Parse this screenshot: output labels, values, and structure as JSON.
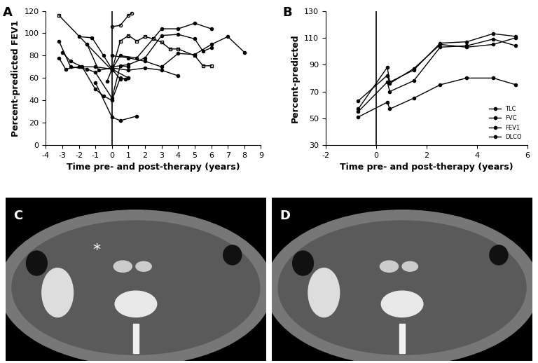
{
  "chart_data": [
    {
      "type": "line",
      "title": "A",
      "x_label": "Time pre- and post-therapy (years)",
      "y_label": "Percent-predicted FEV1",
      "xlim": [
        -4,
        9
      ],
      "xticks": [
        -4,
        -3,
        -2,
        -1,
        0,
        1,
        2,
        3,
        4,
        5,
        6,
        7,
        8,
        9
      ],
      "ylim": [
        0,
        120
      ],
      "yticks": [
        0,
        20,
        40,
        60,
        80,
        100,
        120
      ],
      "vline": 0,
      "series": [
        {
          "color": "#000000",
          "marker": "open_square",
          "x": [
            -3.2,
            0,
            0.5,
            1,
            1.5,
            2,
            2.5,
            3,
            3.5,
            4,
            5,
            5.5,
            6
          ],
          "values": [
            116,
            67,
            93,
            98,
            93,
            97,
            95,
            92,
            86,
            86,
            80,
            71,
            71
          ]
        },
        {
          "color": "#000000",
          "marker": "circle",
          "x": [
            -3.2,
            -2.5,
            -1.5,
            -1,
            0,
            0.5,
            1
          ],
          "values": [
            93,
            70,
            68,
            65,
            42,
            71,
            70
          ]
        },
        {
          "color": "#000000",
          "marker": "circle",
          "x": [
            -3.2,
            -2.8,
            -2,
            -1,
            0,
            1
          ],
          "values": [
            78,
            68,
            70,
            70,
            68,
            60
          ]
        },
        {
          "color": "#000000",
          "marker": "open_circle",
          "x": [
            0,
            0.5,
            1,
            1.2
          ],
          "values": [
            106,
            107,
            116,
            118
          ]
        },
        {
          "color": "#000000",
          "marker": "circle",
          "x": [
            -1,
            0,
            0.5,
            1.5
          ],
          "values": [
            56,
            25,
            22,
            26
          ]
        },
        {
          "color": "#000000",
          "marker": "circle",
          "x": [
            -2,
            -1.2,
            -0.5,
            0,
            0.5,
            1.5,
            3,
            4,
            5,
            6
          ],
          "values": [
            97,
            96,
            80,
            68,
            80,
            78,
            104,
            104,
            109,
            104
          ]
        },
        {
          "color": "#000000",
          "marker": "circle",
          "x": [
            -1.5,
            -0.8,
            0,
            1,
            2,
            3,
            4
          ],
          "values": [
            90,
            67,
            69,
            67,
            69,
            67,
            62
          ]
        },
        {
          "color": "#000000",
          "marker": "circle",
          "x": [
            -3,
            -2.5,
            -1.8,
            -1,
            -0.5,
            0,
            0.5,
            0.8
          ],
          "values": [
            83,
            75,
            70,
            50,
            44,
            40,
            60,
            59
          ]
        },
        {
          "color": "#000000",
          "marker": "circle",
          "x": [
            0,
            1,
            2,
            3,
            4,
            5,
            6,
            7,
            8
          ],
          "values": [
            80,
            78,
            75,
            70,
            82,
            81,
            90,
            97,
            83
          ]
        },
        {
          "color": "#000000",
          "marker": "circle",
          "x": [
            0,
            1,
            2,
            3,
            4,
            5,
            5.5,
            6
          ],
          "values": [
            70,
            72,
            78,
            98,
            99,
            95,
            84,
            87
          ]
        },
        {
          "color": "#000000",
          "marker": "circle",
          "x": [
            -0.3,
            0,
            0.5,
            1
          ],
          "values": [
            57,
            68,
            59,
            60
          ]
        }
      ]
    },
    {
      "type": "line",
      "title": "B",
      "x_label": "Time pre- and post-therapy (years)",
      "y_label": "Percent-predicted",
      "xlim": [
        -2,
        6
      ],
      "xticks": [
        -2,
        0,
        2,
        4,
        6
      ],
      "ylim": [
        30,
        130
      ],
      "yticks": [
        30,
        50,
        70,
        90,
        110,
        130
      ],
      "vline": 0,
      "legend": "lower right",
      "x": [
        -0.7,
        0.45,
        0.55,
        1.5,
        2.55,
        3.6,
        4.65,
        5.55
      ],
      "series": [
        {
          "name": "TLC",
          "color": "#000000",
          "marker": "circle",
          "values": [
            57,
            88,
            77,
            86,
            106,
            107,
            113,
            111
          ]
        },
        {
          "name": "FVC",
          "color": "#000000",
          "marker": "circle",
          "values": [
            63,
            82,
            76,
            87,
            105,
            103,
            105,
            110
          ]
        },
        {
          "name": "FEV1",
          "color": "#000000",
          "marker": "circle",
          "values": [
            55,
            77,
            70,
            78,
            103,
            104,
            109,
            104
          ]
        },
        {
          "name": "DLCO",
          "color": "#000000",
          "marker": "circle",
          "values": [
            51,
            62,
            57,
            65,
            75,
            80,
            80,
            75
          ]
        }
      ]
    }
  ],
  "images": [
    {
      "label": "C",
      "annotations": [
        "*"
      ]
    },
    {
      "label": "D",
      "annotations": []
    }
  ]
}
